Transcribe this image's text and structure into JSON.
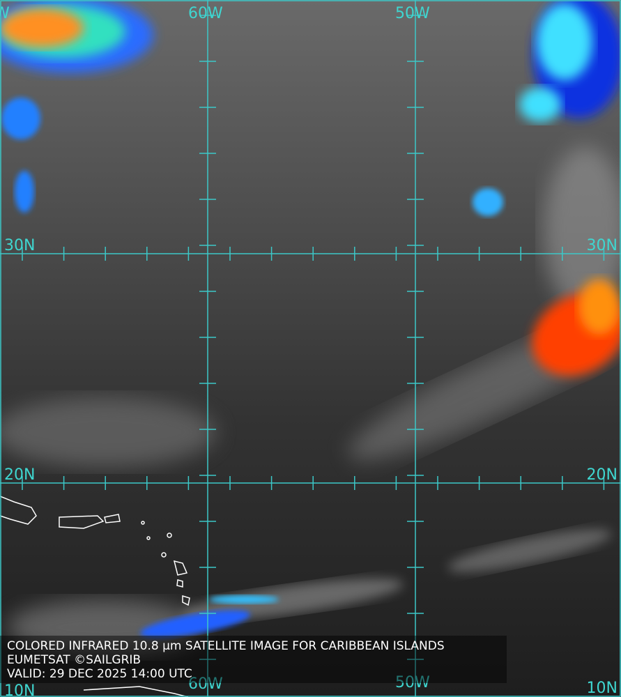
{
  "grid_labels": {
    "top": [
      "W",
      "60W",
      "50W"
    ],
    "left": [
      "30N",
      "20N",
      "10N"
    ],
    "right": [
      "30N",
      "20N",
      "10N"
    ],
    "bottom": [
      "60W",
      "50W"
    ]
  },
  "caption": [
    "COLORED INFRARED 10.8 µm SATELLITE IMAGE FOR CARIBBEAN ISLANDS",
    "EUMETSAT ©SAILGRIB",
    "VALID:  29 DEC 2025 14:00 UTC"
  ]
}
